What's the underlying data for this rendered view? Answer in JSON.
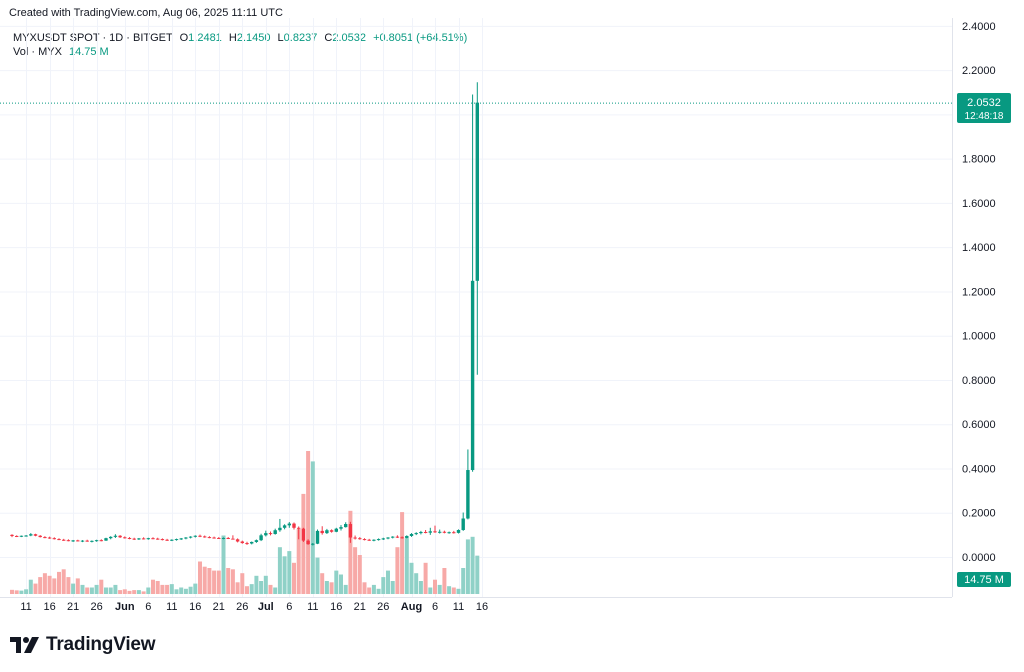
{
  "header": {
    "created_text": "Created with TradingView.com, Aug 06, 2025 11:11 UTC"
  },
  "legend": {
    "symbol": "MYXUSDT SPOT · 1D · BITGET",
    "o_label": "O",
    "o_value": "1.2481",
    "h_label": "H",
    "h_value": "2.1450",
    "l_label": "L",
    "l_value": "0.8237",
    "c_label": "C",
    "c_value": "2.0532",
    "change": "+0.8051 (+64.51%)",
    "vol_label": "Vol · MYX",
    "vol_value": "14.75 M"
  },
  "price_badge": {
    "price": "2.0532",
    "countdown": "12:48:18"
  },
  "volume_badge": {
    "value": "14.75 M"
  },
  "logo": {
    "text": "TradingView",
    "icon": "tradingview-logo-icon"
  },
  "colors": {
    "up": "#089981",
    "down": "#F23645",
    "vol_up": "#8FD1C7",
    "vol_down": "#F7A9A7",
    "grid": "#F0F3FA",
    "text": "#131722"
  },
  "chart_data": {
    "type": "candlestick",
    "symbol": "MYXUSDT",
    "interval": "1D",
    "y_axis": {
      "ticks": [
        "2.4000",
        "2.2000",
        "2.0000",
        "1.8000",
        "1.6000",
        "1.4000",
        "1.2000",
        "1.0000",
        "0.8000",
        "0.6000",
        "0.4000",
        "0.2000",
        "0.0000"
      ]
    },
    "x_axis": {
      "ticks": [
        {
          "label": "11",
          "date": "2025-05-11"
        },
        {
          "label": "16",
          "date": "2025-05-16"
        },
        {
          "label": "21",
          "date": "2025-05-21"
        },
        {
          "label": "26",
          "date": "2025-05-26"
        },
        {
          "label": "Jun",
          "date": "2025-06-01",
          "bold": true
        },
        {
          "label": "6",
          "date": "2025-06-06"
        },
        {
          "label": "11",
          "date": "2025-06-11"
        },
        {
          "label": "16",
          "date": "2025-06-16"
        },
        {
          "label": "21",
          "date": "2025-06-21"
        },
        {
          "label": "26",
          "date": "2025-06-26"
        },
        {
          "label": "Jul",
          "date": "2025-07-01",
          "bold": true
        },
        {
          "label": "6",
          "date": "2025-07-06"
        },
        {
          "label": "11",
          "date": "2025-07-11"
        },
        {
          "label": "16",
          "date": "2025-07-16"
        },
        {
          "label": "21",
          "date": "2025-07-21"
        },
        {
          "label": "26",
          "date": "2025-07-26"
        },
        {
          "label": "Aug",
          "date": "2025-08-01",
          "bold": true
        },
        {
          "label": "6",
          "date": "2025-08-06"
        },
        {
          "label": "11",
          "date": "2025-08-11"
        },
        {
          "label": "16",
          "date": "2025-08-16"
        }
      ]
    },
    "first_date": "2025-05-08",
    "candles": [
      [
        0.1,
        0.103,
        0.09,
        0.095
      ],
      [
        0.095,
        0.098,
        0.09,
        0.094
      ],
      [
        0.094,
        0.097,
        0.09,
        0.096
      ],
      [
        0.096,
        0.099,
        0.092,
        0.097
      ],
      [
        0.097,
        0.108,
        0.094,
        0.103
      ],
      [
        0.103,
        0.105,
        0.094,
        0.096
      ],
      [
        0.096,
        0.099,
        0.088,
        0.09
      ],
      [
        0.09,
        0.094,
        0.085,
        0.088
      ],
      [
        0.088,
        0.092,
        0.082,
        0.085
      ],
      [
        0.085,
        0.089,
        0.079,
        0.081
      ],
      [
        0.081,
        0.085,
        0.076,
        0.078
      ],
      [
        0.078,
        0.082,
        0.073,
        0.076
      ],
      [
        0.076,
        0.08,
        0.071,
        0.073
      ],
      [
        0.073,
        0.077,
        0.068,
        0.075
      ],
      [
        0.075,
        0.078,
        0.07,
        0.072
      ],
      [
        0.072,
        0.076,
        0.067,
        0.074
      ],
      [
        0.074,
        0.078,
        0.069,
        0.071
      ],
      [
        0.071,
        0.075,
        0.066,
        0.073
      ],
      [
        0.073,
        0.078,
        0.069,
        0.076
      ],
      [
        0.076,
        0.08,
        0.071,
        0.074
      ],
      [
        0.074,
        0.087,
        0.073,
        0.085
      ],
      [
        0.085,
        0.094,
        0.08,
        0.091
      ],
      [
        0.091,
        0.103,
        0.086,
        0.096
      ],
      [
        0.096,
        0.099,
        0.086,
        0.089
      ],
      [
        0.089,
        0.093,
        0.083,
        0.086
      ],
      [
        0.086,
        0.09,
        0.08,
        0.083
      ],
      [
        0.083,
        0.087,
        0.077,
        0.081
      ],
      [
        0.081,
        0.086,
        0.077,
        0.084
      ],
      [
        0.084,
        0.089,
        0.079,
        0.082
      ],
      [
        0.082,
        0.087,
        0.078,
        0.085
      ],
      [
        0.085,
        0.089,
        0.08,
        0.083
      ],
      [
        0.083,
        0.087,
        0.078,
        0.081
      ],
      [
        0.081,
        0.084,
        0.075,
        0.078
      ],
      [
        0.078,
        0.082,
        0.073,
        0.076
      ],
      [
        0.076,
        0.08,
        0.072,
        0.078
      ],
      [
        0.078,
        0.083,
        0.074,
        0.081
      ],
      [
        0.081,
        0.086,
        0.077,
        0.084
      ],
      [
        0.084,
        0.09,
        0.08,
        0.088
      ],
      [
        0.088,
        0.094,
        0.084,
        0.092
      ],
      [
        0.092,
        0.098,
        0.088,
        0.096
      ],
      [
        0.096,
        0.101,
        0.09,
        0.093
      ],
      [
        0.093,
        0.097,
        0.087,
        0.09
      ],
      [
        0.09,
        0.094,
        0.085,
        0.088
      ],
      [
        0.088,
        0.092,
        0.083,
        0.086
      ],
      [
        0.086,
        0.09,
        0.082,
        0.084
      ],
      [
        0.084,
        0.088,
        0.08,
        0.086
      ],
      [
        0.086,
        0.09,
        0.081,
        0.083
      ],
      [
        0.083,
        0.098,
        0.082,
        0.08
      ],
      [
        0.08,
        0.084,
        0.066,
        0.07
      ],
      [
        0.07,
        0.074,
        0.06,
        0.063
      ],
      [
        0.063,
        0.069,
        0.055,
        0.061
      ],
      [
        0.061,
        0.07,
        0.057,
        0.068
      ],
      [
        0.068,
        0.079,
        0.064,
        0.076
      ],
      [
        0.076,
        0.105,
        0.072,
        0.098
      ],
      [
        0.098,
        0.119,
        0.093,
        0.108
      ],
      [
        0.108,
        0.115,
        0.098,
        0.104
      ],
      [
        0.104,
        0.128,
        0.101,
        0.121
      ],
      [
        0.121,
        0.172,
        0.114,
        0.132
      ],
      [
        0.132,
        0.148,
        0.125,
        0.143
      ],
      [
        0.143,
        0.158,
        0.132,
        0.151
      ],
      [
        0.151,
        0.156,
        0.124,
        0.132
      ],
      [
        0.132,
        0.138,
        0.08,
        0.128
      ],
      [
        0.128,
        0.132,
        0.068,
        0.074
      ],
      [
        0.074,
        0.08,
        0.055,
        0.058
      ],
      [
        0.058,
        0.063,
        0.052,
        0.06
      ],
      [
        0.06,
        0.124,
        0.058,
        0.118
      ],
      [
        0.118,
        0.139,
        0.101,
        0.108
      ],
      [
        0.108,
        0.127,
        0.104,
        0.121
      ],
      [
        0.121,
        0.125,
        0.11,
        0.114
      ],
      [
        0.114,
        0.132,
        0.112,
        0.128
      ],
      [
        0.128,
        0.144,
        0.12,
        0.135
      ],
      [
        0.135,
        0.157,
        0.133,
        0.149
      ],
      [
        0.149,
        0.159,
        0.064,
        0.088
      ],
      [
        0.088,
        0.097,
        0.079,
        0.085
      ],
      [
        0.085,
        0.09,
        0.078,
        0.081
      ],
      [
        0.081,
        0.085,
        0.075,
        0.078
      ],
      [
        0.078,
        0.082,
        0.073,
        0.076
      ],
      [
        0.076,
        0.08,
        0.071,
        0.078
      ],
      [
        0.078,
        0.084,
        0.074,
        0.081
      ],
      [
        0.081,
        0.087,
        0.077,
        0.084
      ],
      [
        0.084,
        0.09,
        0.08,
        0.088
      ],
      [
        0.088,
        0.094,
        0.084,
        0.092
      ],
      [
        0.092,
        0.098,
        0.086,
        0.089
      ],
      [
        0.089,
        0.093,
        0.083,
        0.086
      ],
      [
        0.086,
        0.098,
        0.084,
        0.095
      ],
      [
        0.095,
        0.108,
        0.091,
        0.104
      ],
      [
        0.104,
        0.112,
        0.099,
        0.108
      ],
      [
        0.108,
        0.118,
        0.102,
        0.113
      ],
      [
        0.113,
        0.122,
        0.107,
        0.11
      ],
      [
        0.11,
        0.132,
        0.1,
        0.116
      ],
      [
        0.116,
        0.142,
        0.109,
        0.112
      ],
      [
        0.112,
        0.124,
        0.106,
        0.114
      ],
      [
        0.114,
        0.119,
        0.107,
        0.11
      ],
      [
        0.11,
        0.115,
        0.105,
        0.112
      ],
      [
        0.112,
        0.118,
        0.106,
        0.109
      ],
      [
        0.109,
        0.125,
        0.106,
        0.122
      ],
      [
        0.122,
        0.201,
        0.118,
        0.174
      ],
      [
        0.174,
        0.486,
        0.17,
        0.393
      ],
      [
        0.393,
        2.09,
        0.385,
        1.248
      ],
      [
        1.248,
        2.145,
        0.8237,
        2.0532
      ]
    ],
    "volume": [
      1.6,
      1.4,
      1.3,
      1.8,
      5.5,
      4.0,
      6.5,
      8.0,
      7.0,
      6.0,
      8.5,
      9.5,
      6.5,
      4.0,
      6.0,
      3.5,
      2.5,
      2.5,
      3.5,
      5.5,
      2.5,
      2.5,
      3.5,
      1.5,
      1.8,
      1.2,
      1.5,
      1.5,
      1.0,
      2.5,
      5.5,
      5.0,
      3.5,
      3.5,
      3.8,
      1.8,
      2.5,
      2.0,
      2.8,
      4.0,
      12.5,
      10.5,
      10.0,
      9.0,
      9.0,
      22.5,
      10.0,
      9.5,
      4.5,
      8.0,
      3.0,
      3.8,
      7.0,
      5.0,
      7.0,
      3.5,
      2.5,
      18.0,
      14.5,
      16.5,
      12.0,
      25.0,
      38.5,
      55.0,
      51.0,
      14.0,
      8.0,
      5.0,
      4.5,
      9.0,
      7.5,
      3.5,
      32.0,
      18.0,
      15.0,
      4.5,
      2.5,
      3.5,
      2.0,
      6.5,
      9.0,
      5.0,
      18.0,
      31.5,
      21.5,
      12.0,
      8.0,
      5.0,
      12.0,
      2.5,
      5.5,
      3.5,
      10.0,
      3.0,
      2.5,
      2.0,
      10.0,
      21.0,
      22.0,
      14.75
    ],
    "volume_unit": "M",
    "last_price": 2.0532
  }
}
